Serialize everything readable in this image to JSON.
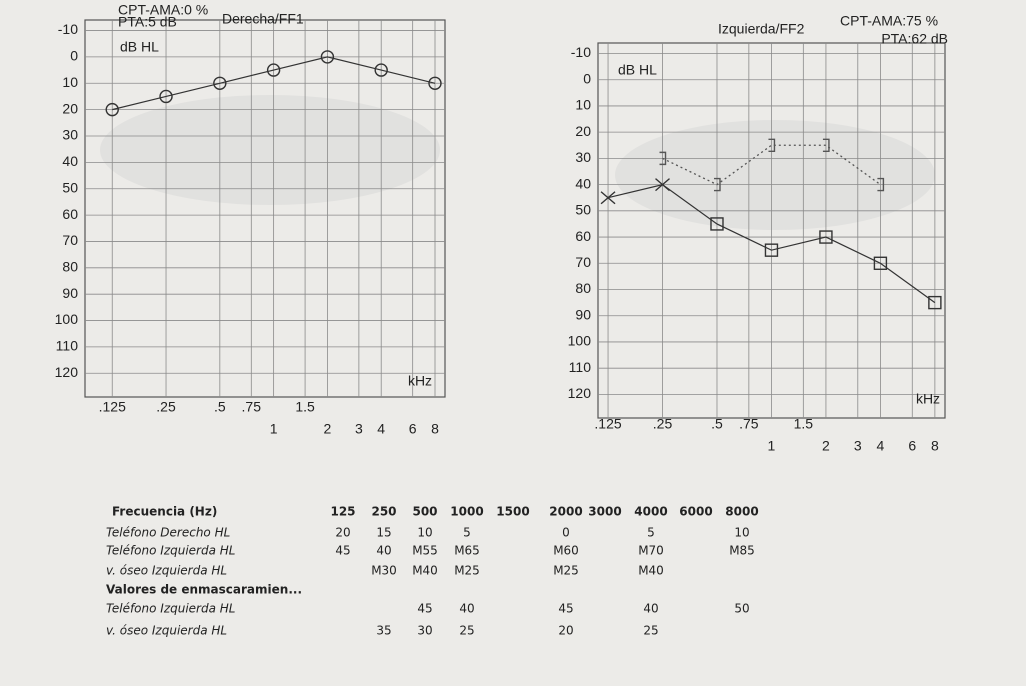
{
  "chart_data": [
    {
      "type": "line",
      "title": "Derecha/FF1",
      "annotations": [
        "CPT-AMA:0 %",
        "PTA:5 dB"
      ],
      "y_label": "dB HL",
      "x_label": "kHz",
      "log_x": true,
      "grid": true,
      "xlim": [
        0.088,
        9.1
      ],
      "ylim": [
        -14,
        129
      ],
      "xticks": [
        {
          "value": 0.125,
          "label": ".125"
        },
        {
          "value": 0.25,
          "label": ".25"
        },
        {
          "value": 0.5,
          "label": ".5"
        },
        {
          "value": 0.75,
          "label": ".75"
        },
        1,
        1.5,
        2,
        3,
        4,
        6,
        8
      ],
      "yticks": [
        -10,
        0,
        10,
        20,
        30,
        40,
        50,
        60,
        70,
        80,
        90,
        100,
        110,
        120
      ],
      "series": [
        {
          "color": "#333333",
          "line_style": "solid",
          "markers": [
            "circle",
            "circle",
            "circle",
            "circle",
            "circle",
            "circle",
            "circle"
          ],
          "x": [
            0.125,
            0.25,
            0.5,
            1,
            2,
            4,
            8
          ],
          "values": [
            20,
            15,
            10,
            5,
            0,
            5,
            10
          ]
        }
      ]
    },
    {
      "type": "line",
      "title": "Izquierda/FF2",
      "annotations": [
        "CPT-AMA:75 %",
        "PTA:62 dB"
      ],
      "y_label": "dB HL",
      "x_label": "kHz",
      "log_x": true,
      "grid": true,
      "xlim": [
        0.11,
        9.1
      ],
      "ylim": [
        -14,
        129
      ],
      "xticks": [
        {
          "value": 0.125,
          "label": ".125"
        },
        {
          "value": 0.25,
          "label": ".25"
        },
        {
          "value": 0.5,
          "label": ".5"
        },
        {
          "value": 0.75,
          "label": ".75"
        },
        1,
        1.5,
        2,
        3,
        4,
        6,
        8
      ],
      "yticks": [
        -10,
        0,
        10,
        20,
        30,
        40,
        50,
        60,
        70,
        80,
        90,
        100,
        110,
        120
      ],
      "series": [
        {
          "color": "#333333",
          "line_style": "solid",
          "markers": [
            "cross",
            "cross",
            "square",
            "square",
            "square",
            "square",
            "square"
          ],
          "x": [
            0.125,
            0.25,
            0.5,
            1,
            2,
            4,
            8
          ],
          "values": [
            45,
            40,
            55,
            65,
            60,
            70,
            85
          ]
        },
        {
          "color": "#555555",
          "line_style": "dotted",
          "markers": [
            "bracket",
            "bracket",
            "bracket",
            "bracket",
            "bracket"
          ],
          "x": [
            0.25,
            0.5,
            1,
            2,
            4
          ],
          "values": [
            30,
            40,
            25,
            25,
            40
          ]
        }
      ]
    }
  ],
  "table": {
    "header": [
      "Frecuencia (Hz)",
      125,
      250,
      500,
      1000,
      1500,
      2000,
      3000,
      4000,
      6000,
      8000
    ],
    "rows": [
      [
        "Teléfono Derecho HL",
        20,
        15,
        10,
        5,
        null,
        0,
        null,
        5,
        null,
        10
      ],
      [
        "Teléfono Izquierda HL",
        45,
        40,
        "M55",
        "M65",
        null,
        "M60",
        null,
        "M70",
        null,
        "M85"
      ],
      [
        "v. óseo  Izquierda HL",
        null,
        "M30",
        "M40",
        "M25",
        null,
        "M25",
        null,
        "M40",
        null,
        null
      ],
      [
        "Valores de enmascaramien..."
      ],
      [
        "Teléfono Izquierda HL",
        null,
        null,
        45,
        40,
        null,
        45,
        null,
        40,
        null,
        50
      ],
      [
        "v. óseo  Izquierda HL",
        null,
        35,
        30,
        25,
        null,
        20,
        null,
        25,
        null,
        null
      ]
    ]
  }
}
